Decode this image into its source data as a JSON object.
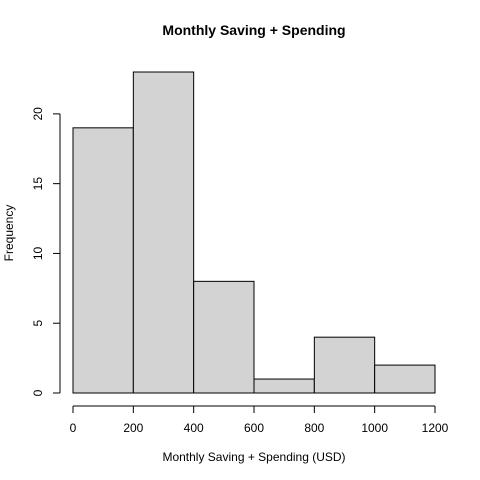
{
  "chart_data": {
    "type": "bar",
    "title": "Monthly Saving + Spending",
    "xlabel": "Monthly Saving + Spending (USD)",
    "ylabel": "Frequency",
    "bins": [
      {
        "x0": 0,
        "x1": 200,
        "count": 19
      },
      {
        "x0": 200,
        "x1": 400,
        "count": 23
      },
      {
        "x0": 400,
        "x1": 600,
        "count": 8
      },
      {
        "x0": 600,
        "x1": 800,
        "count": 1
      },
      {
        "x0": 800,
        "x1": 1000,
        "count": 4
      },
      {
        "x0": 1000,
        "x1": 1200,
        "count": 2
      }
    ],
    "xlim": [
      0,
      1200
    ],
    "ylim": [
      0,
      23
    ],
    "xticks": [
      0,
      200,
      400,
      600,
      800,
      1000,
      1200
    ],
    "xtick_labels": [
      "0",
      "200",
      "400",
      "600",
      "800",
      "1000",
      "1200"
    ],
    "yticks": [
      0,
      5,
      10,
      15,
      20
    ],
    "ytick_labels": [
      "0",
      "5",
      "10",
      "15",
      "20"
    ],
    "grid": false,
    "bar_fill": "#d3d3d3",
    "bar_stroke": "#000000"
  }
}
